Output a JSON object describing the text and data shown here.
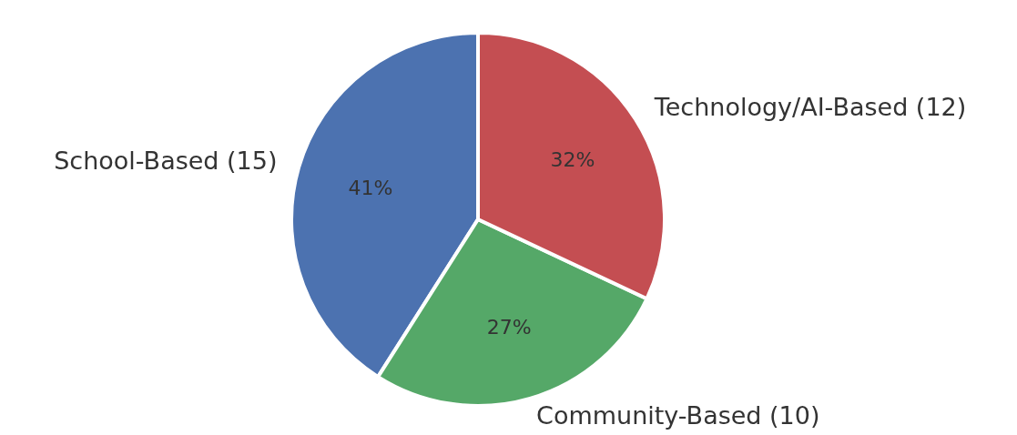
{
  "chart_data": {
    "type": "pie",
    "categories": [
      "School-Based (15)",
      "Community-Based (10)",
      "Technology/AI-Based (12)"
    ],
    "values": [
      41,
      27,
      32
    ],
    "colors": [
      "#4c72b0",
      "#55a868",
      "#c44e52"
    ],
    "value_labels": [
      "41%",
      "27%",
      "32%"
    ],
    "legend": false
  }
}
